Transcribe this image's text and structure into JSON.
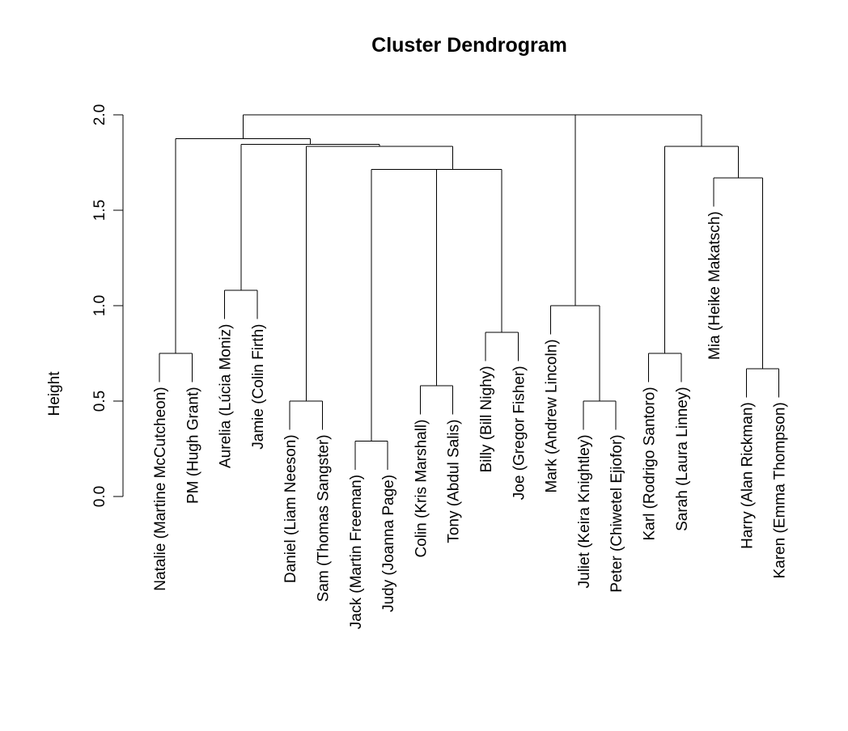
{
  "chart_data": {
    "type": "dendrogram",
    "title": "Cluster Dendrogram",
    "ylabel": "Height",
    "ylim": [
      0,
      2
    ],
    "y_ticks": [
      "0.0",
      "0.5",
      "1.0",
      "1.5",
      "2.0"
    ],
    "leaves": [
      "Natalie (Martine McCutcheon)",
      "PM (Hugh Grant)",
      "Aurelia (Lúcia Moniz)",
      "Jamie (Colin Firth)",
      "Daniel (Liam Neeson)",
      "Sam (Thomas Sangster)",
      "Jack (Martin Freeman)",
      "Judy (Joanna Page)",
      "Colin (Kris Marshall)",
      "Tony (Abdul Salis)",
      "Billy (Bill Nighy)",
      "Joe (Gregor Fisher)",
      "Mark (Andrew Lincoln)",
      "Juliet (Keira Knightley)",
      "Peter (Chiwetel Ejiofor)",
      "Karl (Rodrigo Santoro)",
      "Sarah (Laura Linney)",
      "Mia (Heike Makatsch)",
      "Harry (Alan Rickman)",
      "Karen (Emma Thompson)"
    ],
    "merges": [
      {
        "left": 0,
        "right": 1,
        "height": 0.75
      },
      {
        "left": 2,
        "right": 3,
        "height": 1.08
      },
      {
        "left": 4,
        "right": 5,
        "height": 0.5
      },
      {
        "left": 6,
        "right": 7,
        "height": 0.29
      },
      {
        "left": 8,
        "right": 9,
        "height": 0.58
      },
      {
        "left": 10,
        "right": 11,
        "height": 0.86
      },
      {
        "left": 13,
        "right": 14,
        "height": 0.5
      },
      {
        "left": 15,
        "right": 16,
        "height": 0.75
      },
      {
        "left": 18,
        "right": 19,
        "height": 0.67
      },
      {
        "left": 12,
        "right": "m6",
        "height": 1.0
      },
      {
        "left": 17,
        "right": "m8",
        "height": 1.67
      },
      {
        "left": "m3",
        "right": "m4",
        "height": 1.715
      },
      {
        "left": "m11",
        "right": "m5",
        "height": 1.715
      },
      {
        "left": "m2",
        "right": "m12",
        "height": 1.835
      },
      {
        "left": "m1",
        "right": "m13",
        "height": 1.845
      },
      {
        "left": "m0",
        "right": "m14",
        "height": 1.875
      },
      {
        "left": "m7",
        "right": "m10",
        "height": 1.835
      },
      {
        "left": "m9",
        "right": "m16",
        "height": 2.0
      },
      {
        "left": "m15",
        "right": "m17",
        "height": 2.0
      }
    ]
  }
}
